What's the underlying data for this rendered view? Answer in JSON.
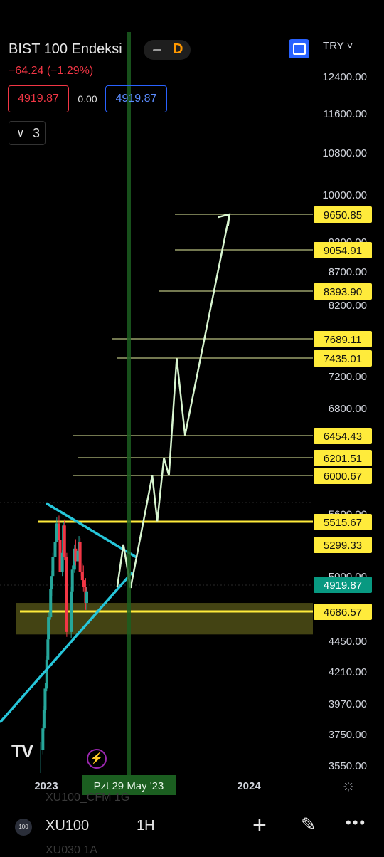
{
  "header": {
    "symbol_name": "BIST 100 Endeksi",
    "timeframe": "D",
    "change": "−64.24 (−1.29%)",
    "bid": "4919.87",
    "spread": "0.00",
    "ask": "4919.87",
    "indicators_count": "3",
    "currency": "TRY ˅"
  },
  "colors": {
    "background": "#000000",
    "up_candle": "#26a69a",
    "down_candle": "#f23645",
    "trendline": "#26c6da",
    "projection": "#d8f5d0",
    "support_line": "#ffeb3b",
    "zone": "#5a5a1a",
    "current_price": "#089981",
    "label_bg": "#ffeb3b",
    "vertical_marker": "#1b5e20"
  },
  "chart_data": {
    "type": "line",
    "title": "BIST 100 Endeksi",
    "y_axis_ticks": [
      "12400.00",
      "11600.00",
      "10800.00",
      "10000.00",
      "9200.00",
      "8700.00",
      "8200.00",
      "7200.00",
      "6800.00",
      "5600.00",
      "5000.00",
      "4450.00",
      "4210.00",
      "3970.00",
      "3750.00",
      "3550.00"
    ],
    "x_axis_ticks": [
      "2023",
      "2024"
    ],
    "crosshair_date_label": "Pzt 29 May '23",
    "current_price": 4919.87,
    "price_labels": [
      {
        "text": "9650.85",
        "value": 9650.85
      },
      {
        "text": "9054.91",
        "value": 9054.91
      },
      {
        "text": "8393.90",
        "value": 8393.9
      },
      {
        "text": "7689.11",
        "value": 7689.11
      },
      {
        "text": "7435.01",
        "value": 7435.01
      },
      {
        "text": "6454.43",
        "value": 6454.43
      },
      {
        "text": "6201.51",
        "value": 6201.51
      },
      {
        "text": "6000.67",
        "value": 6000.67
      },
      {
        "text": "5515.67",
        "value": 5515.67
      },
      {
        "text": "5299.33",
        "value": 5299.33
      },
      {
        "text": "4686.57",
        "value": 4686.57
      }
    ],
    "support_zone": [
      4500,
      4760
    ],
    "projection_path": [
      {
        "x": "2023-05-09",
        "y": 4900
      },
      {
        "x": "2023-05-20",
        "y": 5300
      },
      {
        "x": "2023-06-02",
        "y": 4890
      },
      {
        "x": "2023-07-11",
        "y": 6000
      },
      {
        "x": "2023-07-20",
        "y": 5520
      },
      {
        "x": "2023-08-01",
        "y": 6200
      },
      {
        "x": "2023-08-10",
        "y": 6000
      },
      {
        "x": "2023-08-24",
        "y": 7430
      },
      {
        "x": "2023-09-08",
        "y": 6460
      },
      {
        "x": "2023-11-27",
        "y": 9650
      }
    ],
    "candles": [
      {
        "t": "2022-12-22",
        "o": 3650,
        "h": 3700,
        "l": 3500,
        "c": 3650
      },
      {
        "t": "2022-12-26",
        "o": 3650,
        "h": 3820,
        "l": 3620,
        "c": 3790
      },
      {
        "t": "2022-12-28",
        "o": 3790,
        "h": 3950,
        "l": 3770,
        "c": 3920
      },
      {
        "t": "2022-12-30",
        "o": 3920,
        "h": 4120,
        "l": 3900,
        "c": 4080
      },
      {
        "t": "2023-01-02",
        "o": 4080,
        "h": 4330,
        "l": 4060,
        "c": 4300
      },
      {
        "t": "2023-01-04",
        "o": 4300,
        "h": 4500,
        "l": 4280,
        "c": 4460
      },
      {
        "t": "2023-01-05",
        "o": 4460,
        "h": 4680,
        "l": 4440,
        "c": 4640
      },
      {
        "t": "2023-01-09",
        "o": 4640,
        "h": 4900,
        "l": 4620,
        "c": 4880
      },
      {
        "t": "2023-01-11",
        "o": 4880,
        "h": 5050,
        "l": 4820,
        "c": 5000
      },
      {
        "t": "2023-01-13",
        "o": 5000,
        "h": 5220,
        "l": 4960,
        "c": 5180
      },
      {
        "t": "2023-01-17",
        "o": 5180,
        "h": 5360,
        "l": 5140,
        "c": 5320
      },
      {
        "t": "2023-01-19",
        "o": 5320,
        "h": 5480,
        "l": 5280,
        "c": 5440
      },
      {
        "t": "2023-01-20",
        "o": 5440,
        "h": 5560,
        "l": 5380,
        "c": 5500
      },
      {
        "t": "2023-01-24",
        "o": 5500,
        "h": 5580,
        "l": 5300,
        "c": 5340
      },
      {
        "t": "2023-01-26",
        "o": 5340,
        "h": 5420,
        "l": 5000,
        "c": 5040
      },
      {
        "t": "2023-01-30",
        "o": 5040,
        "h": 5250,
        "l": 5000,
        "c": 5220
      },
      {
        "t": "2023-02-01",
        "o": 5220,
        "h": 5510,
        "l": 5200,
        "c": 5480
      },
      {
        "t": "2023-02-03",
        "o": 5480,
        "h": 5540,
        "l": 5150,
        "c": 5180
      },
      {
        "t": "2023-02-07",
        "o": 5180,
        "h": 5220,
        "l": 4480,
        "c": 4520
      },
      {
        "t": "2023-02-15",
        "o": 4520,
        "h": 4900,
        "l": 4470,
        "c": 4860
      },
      {
        "t": "2023-02-17",
        "o": 4860,
        "h": 5100,
        "l": 4800,
        "c": 5060
      },
      {
        "t": "2023-02-21",
        "o": 5060,
        "h": 5300,
        "l": 5030,
        "c": 5260
      },
      {
        "t": "2023-02-23",
        "o": 5260,
        "h": 5350,
        "l": 5100,
        "c": 5140
      },
      {
        "t": "2023-02-27",
        "o": 5140,
        "h": 5280,
        "l": 5080,
        "c": 5240
      },
      {
        "t": "2023-03-01",
        "o": 5240,
        "h": 5380,
        "l": 5200,
        "c": 5320
      },
      {
        "t": "2023-03-03",
        "o": 5320,
        "h": 5360,
        "l": 5000,
        "c": 5040
      },
      {
        "t": "2023-03-07",
        "o": 5040,
        "h": 5120,
        "l": 4900,
        "c": 4960
      },
      {
        "t": "2023-03-09",
        "o": 4960,
        "h": 5100,
        "l": 4860,
        "c": 4900
      },
      {
        "t": "2023-03-13",
        "o": 4900,
        "h": 4980,
        "l": 4700,
        "c": 4760
      },
      {
        "t": "2023-03-15",
        "o": 4760,
        "h": 4900,
        "l": 4700,
        "c": 4860
      }
    ]
  },
  "footer": {
    "symbol_badge": "100",
    "symbol": "XU100",
    "timeframe": "1H",
    "ghost_above": "XU100_CFM 1G",
    "ghost_below": "XU030 1A"
  },
  "icons": {
    "fullscreen": "fullscreen-icon",
    "tv_logo": "tradingview-logo",
    "bolt": "lightning-icon",
    "gear": "gear-icon",
    "plus": "plus-icon",
    "pen": "pen-icon",
    "more": "more-icon"
  }
}
